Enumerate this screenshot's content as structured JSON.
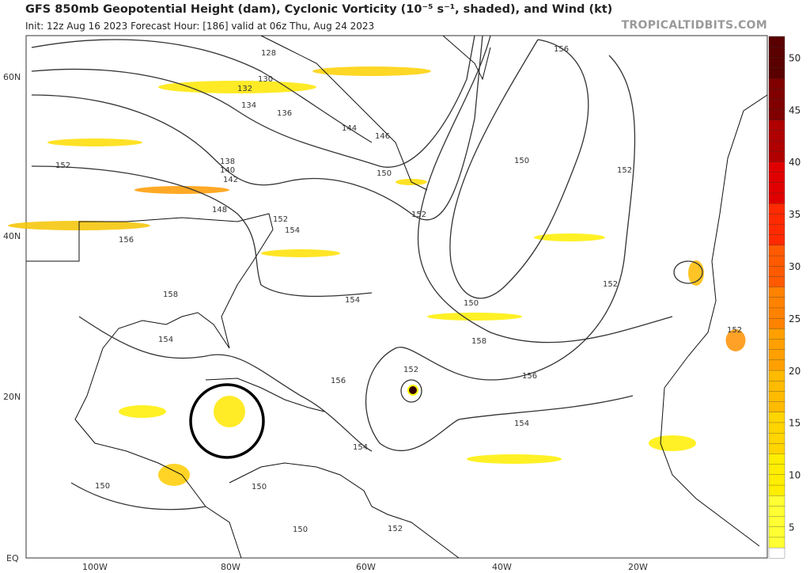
{
  "header": {
    "title": "GFS 850mb Geopotential Height (dam), Cyclonic Vorticity (10⁻⁵ s⁻¹, shaded), and Wind (kt)",
    "subtitle": "Init: 12z Aug 16 2023   Forecast Hour: [186]   valid at 06z Thu, Aug 24 2023",
    "brand": "TROPICALTIDBITS.COM"
  },
  "map": {
    "lat_labels": [
      "60N",
      "40N",
      "20N",
      "EQ"
    ],
    "lon_labels": [
      "100W",
      "80W",
      "60W",
      "40W",
      "20W"
    ],
    "contour_labels": [
      "128",
      "130",
      "132",
      "134",
      "136",
      "138",
      "140",
      "142",
      "144",
      "146",
      "148",
      "150",
      "152",
      "152",
      "152",
      "152",
      "152",
      "152",
      "152",
      "154",
      "154",
      "154",
      "154",
      "154",
      "156",
      "156",
      "156",
      "156",
      "158",
      "158",
      "150",
      "150",
      "150",
      "150",
      "150",
      "152"
    ],
    "highlight_circle": "circle annotation over western Caribbean"
  },
  "colorbar": {
    "ticks": [
      "50",
      "45",
      "40",
      "35",
      "30",
      "25",
      "20",
      "15",
      "10",
      "5"
    ],
    "min": 2,
    "max": 52,
    "colors_low_to_high": [
      "#ffffff",
      "#ffff33",
      "#ffee00",
      "#ffd500",
      "#ffbb00",
      "#ffa000",
      "#ff8200",
      "#ff5a00",
      "#ff2a00",
      "#e00000",
      "#b00000",
      "#800000",
      "#5a0000"
    ]
  }
}
